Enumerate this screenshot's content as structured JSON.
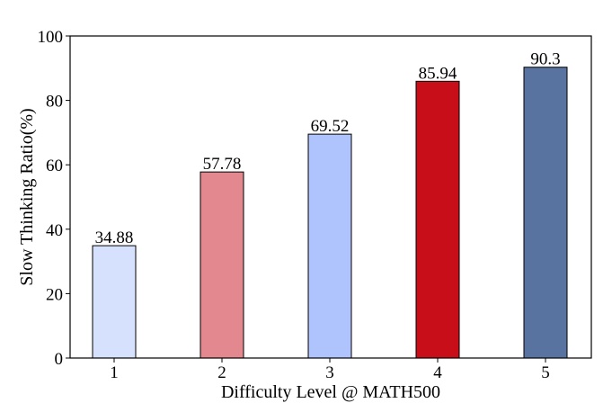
{
  "chart_data": {
    "type": "bar",
    "categories": [
      "1",
      "2",
      "3",
      "4",
      "5"
    ],
    "values": [
      34.88,
      57.78,
      69.52,
      85.94,
      90.3
    ],
    "data_labels": [
      "34.88",
      "57.78",
      "69.52",
      "85.94",
      "90.3"
    ],
    "bar_colors": [
      "#d6e2fd",
      "#e2888e",
      "#afc3fd",
      "#c80e19",
      "#58739f"
    ],
    "xlabel": "Difficulty Level @ MATH500",
    "ylabel": "Slow Thinking Ratio(%)",
    "ylim": [
      0,
      100
    ],
    "yticks": [
      0,
      20,
      40,
      60,
      80,
      100
    ],
    "grid": false,
    "legend": "none"
  }
}
